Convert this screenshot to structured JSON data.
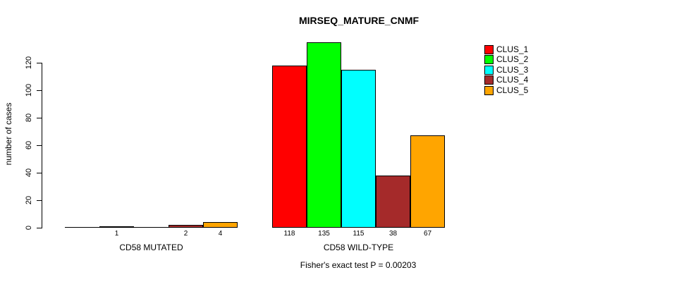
{
  "chart_data": {
    "type": "bar",
    "title": "MIRSEQ_MATURE_CNMF",
    "ylabel": "number of cases",
    "xlabel": "",
    "ylim": [
      0,
      135
    ],
    "yticks": [
      0,
      20,
      40,
      60,
      80,
      100,
      120
    ],
    "grid": false,
    "legend_position": "top-right",
    "series": [
      {
        "name": "CLUS_1",
        "color": "#FF0000"
      },
      {
        "name": "CLUS_2",
        "color": "#00FF00"
      },
      {
        "name": "CLUS_3",
        "color": "#00FFFF"
      },
      {
        "name": "CLUS_4",
        "color": "#A52A2A"
      },
      {
        "name": "CLUS_5",
        "color": "#FFA500"
      }
    ],
    "groups": [
      {
        "label": "CD58 MUTATED",
        "values": [
          0,
          1,
          0,
          2,
          4
        ],
        "bar_labels": [
          "",
          "1",
          "",
          "2",
          "4"
        ]
      },
      {
        "label": "CD58 WILD-TYPE",
        "values": [
          118,
          135,
          115,
          38,
          67
        ],
        "bar_labels": [
          "118",
          "135",
          "115",
          "38",
          "67"
        ]
      }
    ],
    "annotation": "Fisher's exact test P = 0.00203"
  }
}
